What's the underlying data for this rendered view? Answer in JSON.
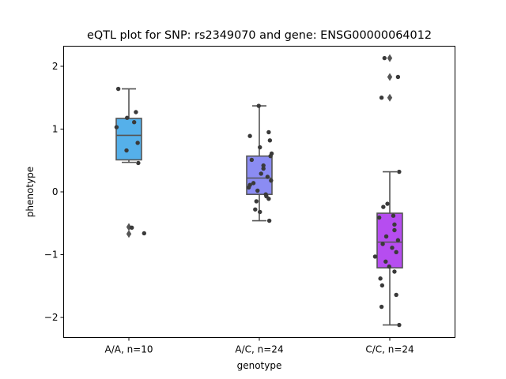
{
  "chart_data": {
    "type": "box",
    "title": "eQTL plot for SNP: rs2349070 and gene: ENSG00000064012",
    "xlabel": "genotype",
    "ylabel": "phenotype",
    "ylim": [
      -2.32,
      2.32
    ],
    "yticks": [
      -2,
      -1,
      0,
      1,
      2
    ],
    "ytick_labels": [
      "−2",
      "−1",
      "0",
      "1",
      "2"
    ],
    "grid": false,
    "legend": "none",
    "categories": [
      "A/A, n=10",
      "A/C, n=24",
      "C/C, n=24"
    ],
    "groups": [
      {
        "label": "A/A, n=10",
        "color": "#55b0ea",
        "q1": 0.51,
        "median": 0.9,
        "q3": 1.17,
        "whisker_low": 0.47,
        "whisker_high": 1.64,
        "outliers": [
          -0.56,
          -0.67
        ],
        "points": [
          {
            "x": -0.18,
            "y": 1.64
          },
          {
            "x": 0.12,
            "y": 1.27
          },
          {
            "x": -0.03,
            "y": 1.18
          },
          {
            "x": 0.09,
            "y": 1.11
          },
          {
            "x": -0.21,
            "y": 1.03
          },
          {
            "x": 0.15,
            "y": 0.78
          },
          {
            "x": -0.04,
            "y": 0.66
          },
          {
            "x": 0.16,
            "y": 0.46
          },
          {
            "x": 0.05,
            "y": -0.57
          },
          {
            "x": 0.26,
            "y": -0.66
          }
        ]
      },
      {
        "label": "A/C, n=24",
        "color": "#8b8cf3",
        "q1": -0.04,
        "median": 0.22,
        "q3": 0.57,
        "whisker_low": -0.46,
        "whisker_high": 1.37,
        "outliers": [],
        "points": [
          {
            "x": -0.01,
            "y": 1.37
          },
          {
            "x": 0.16,
            "y": 0.95
          },
          {
            "x": -0.16,
            "y": 0.89
          },
          {
            "x": 0.18,
            "y": 0.82
          },
          {
            "x": 0.01,
            "y": 0.71
          },
          {
            "x": 0.21,
            "y": 0.61
          },
          {
            "x": 0.19,
            "y": 0.57
          },
          {
            "x": -0.13,
            "y": 0.51
          },
          {
            "x": 0.07,
            "y": 0.42
          },
          {
            "x": 0.07,
            "y": 0.37
          },
          {
            "x": 0.03,
            "y": 0.29
          },
          {
            "x": 0.14,
            "y": 0.24
          },
          {
            "x": 0.2,
            "y": 0.18
          },
          {
            "x": -0.1,
            "y": 0.14
          },
          {
            "x": -0.16,
            "y": 0.11
          },
          {
            "x": -0.18,
            "y": 0.07
          },
          {
            "x": -0.03,
            "y": 0.02
          },
          {
            "x": 0.11,
            "y": -0.04
          },
          {
            "x": 0.12,
            "y": -0.07
          },
          {
            "x": 0.16,
            "y": -0.11
          },
          {
            "x": -0.05,
            "y": -0.15
          },
          {
            "x": -0.07,
            "y": -0.28
          },
          {
            "x": 0.01,
            "y": -0.32
          },
          {
            "x": 0.17,
            "y": -0.46
          }
        ]
      },
      {
        "label": "C/C, n=24",
        "color": "#b64df0",
        "q1": -1.21,
        "median": -0.8,
        "q3": -0.34,
        "whisker_low": -2.12,
        "whisker_high": 0.32,
        "outliers": [
          2.13,
          1.83,
          1.5
        ],
        "points": [
          {
            "x": -0.09,
            "y": 2.13
          },
          {
            "x": 0.14,
            "y": 1.83
          },
          {
            "x": -0.14,
            "y": 1.5
          },
          {
            "x": 0.16,
            "y": 0.32
          },
          {
            "x": -0.04,
            "y": -0.19
          },
          {
            "x": -0.11,
            "y": -0.24
          },
          {
            "x": 0.06,
            "y": -0.38
          },
          {
            "x": -0.18,
            "y": -0.41
          },
          {
            "x": 0.08,
            "y": -0.52
          },
          {
            "x": 0.08,
            "y": -0.61
          },
          {
            "x": -0.06,
            "y": -0.71
          },
          {
            "x": 0.14,
            "y": -0.77
          },
          {
            "x": -0.12,
            "y": -0.83
          },
          {
            "x": 0.04,
            "y": -0.89
          },
          {
            "x": 0.11,
            "y": -0.96
          },
          {
            "x": -0.25,
            "y": -1.03
          },
          {
            "x": -0.07,
            "y": -1.11
          },
          {
            "x": -0.01,
            "y": -1.19
          },
          {
            "x": 0.08,
            "y": -1.27
          },
          {
            "x": -0.16,
            "y": -1.38
          },
          {
            "x": -0.13,
            "y": -1.49
          },
          {
            "x": 0.11,
            "y": -1.64
          },
          {
            "x": -0.14,
            "y": -1.83
          },
          {
            "x": 0.16,
            "y": -2.12
          }
        ]
      }
    ]
  }
}
